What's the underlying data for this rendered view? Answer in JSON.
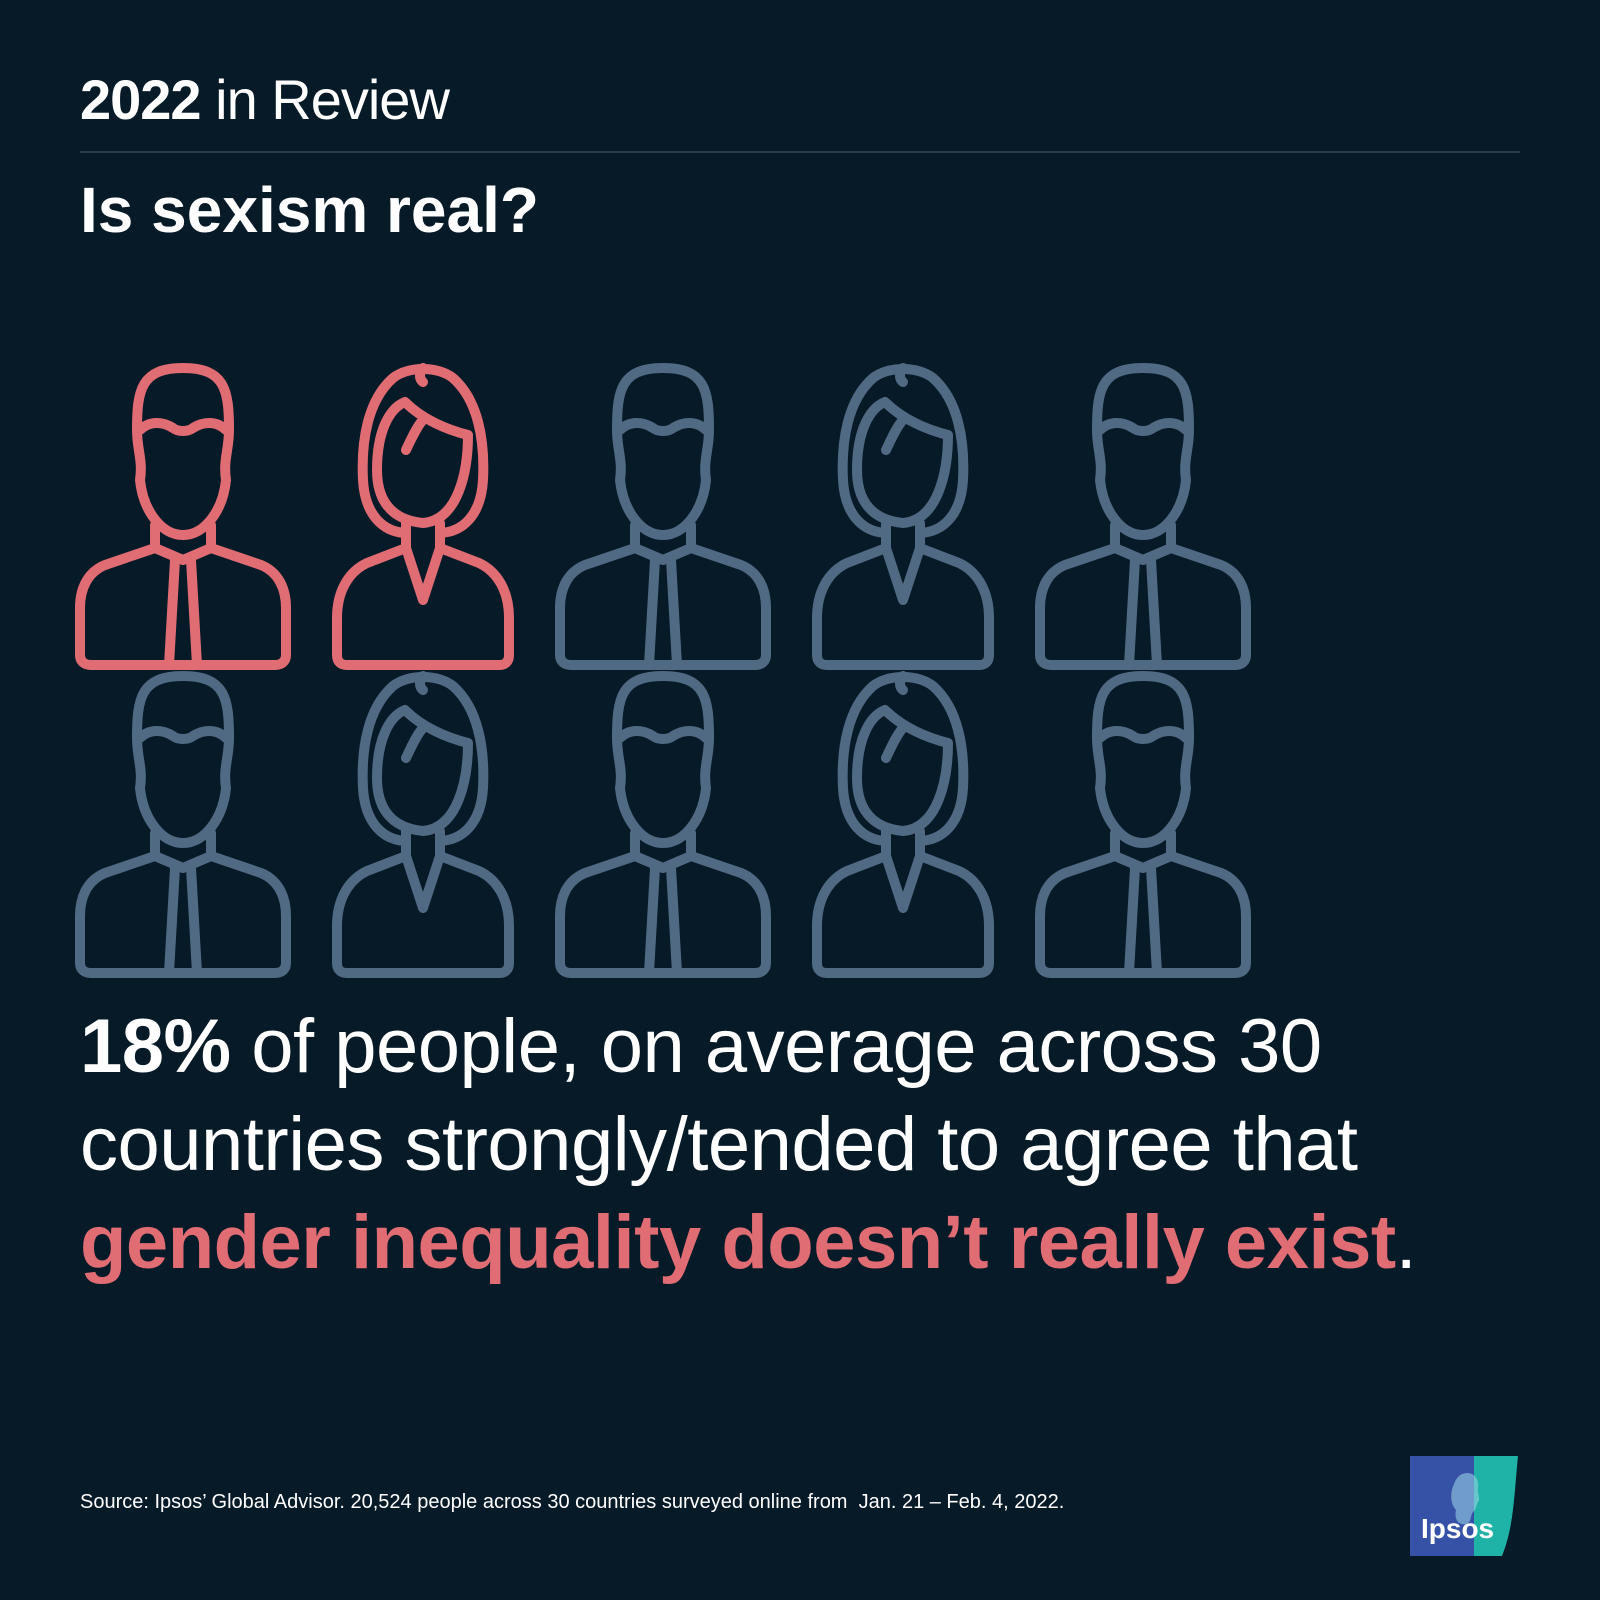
{
  "header": {
    "year": "2022",
    "rest": " in Review"
  },
  "question": "Is sexism real?",
  "pictogram": {
    "total": 10,
    "highlighted": 2,
    "highlight_color": "#e06c74",
    "default_color": "#4f6a82",
    "sequence": [
      "man",
      "woman",
      "man",
      "woman",
      "man",
      "man",
      "woman",
      "man",
      "woman",
      "man"
    ],
    "icon_names": {
      "man": "man-person-icon",
      "woman": "woman-person-icon"
    }
  },
  "statement": {
    "percent": "18%",
    "text_mid": " of people, on average across 30 countries strongly/tended to agree that ",
    "highlight": "gender inequality doesn’t really exist",
    "end": "."
  },
  "source": "Source: Ipsos’ Global Advisor. 20,524 people across 30 countries surveyed online from  Jan. 21 – Feb. 4, 2022.",
  "logo": {
    "text": "Ipsos",
    "color_blue": "#3552a6",
    "color_teal": "#1fb2a6"
  }
}
